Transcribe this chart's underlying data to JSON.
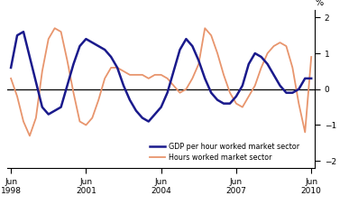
{
  "ylabel": "%",
  "ylim": [
    -2.2,
    2.2
  ],
  "yticks": [
    -2,
    -1,
    0,
    1,
    2
  ],
  "xtick_years": [
    1998,
    2001,
    2004,
    2007,
    2010
  ],
  "background_color": "#ffffff",
  "gdp_color": "#1a1a8c",
  "hours_color": "#e8956d",
  "gdp_label": "GDP per hour worked market sector",
  "hours_label": "Hours worked market sector",
  "gdp_linewidth": 1.8,
  "hours_linewidth": 1.3,
  "gdp_data": [
    0.6,
    1.5,
    1.6,
    0.9,
    0.2,
    -0.5,
    -0.7,
    -0.6,
    -0.5,
    0.1,
    0.7,
    1.2,
    1.4,
    1.3,
    1.2,
    1.1,
    0.9,
    0.6,
    0.1,
    -0.3,
    -0.6,
    -0.8,
    -0.9,
    -0.7,
    -0.5,
    -0.1,
    0.5,
    1.1,
    1.4,
    1.2,
    0.8,
    0.3,
    -0.1,
    -0.3,
    -0.4,
    -0.4,
    -0.2,
    0.1,
    0.7,
    1.0,
    0.9,
    0.7,
    0.4,
    0.1,
    -0.1,
    -0.1,
    0.0,
    0.3,
    0.3
  ],
  "hours_data": [
    0.3,
    -0.2,
    -0.9,
    -1.3,
    -0.8,
    0.5,
    1.4,
    1.7,
    1.6,
    0.8,
    -0.1,
    -0.9,
    -1.0,
    -0.8,
    -0.3,
    0.3,
    0.6,
    0.6,
    0.5,
    0.4,
    0.4,
    0.4,
    0.3,
    0.4,
    0.4,
    0.3,
    0.1,
    -0.1,
    0.0,
    0.3,
    0.7,
    1.7,
    1.5,
    1.0,
    0.4,
    -0.1,
    -0.4,
    -0.5,
    -0.2,
    0.1,
    0.6,
    1.0,
    1.2,
    1.3,
    1.2,
    0.6,
    -0.4,
    -1.2,
    0.9
  ]
}
